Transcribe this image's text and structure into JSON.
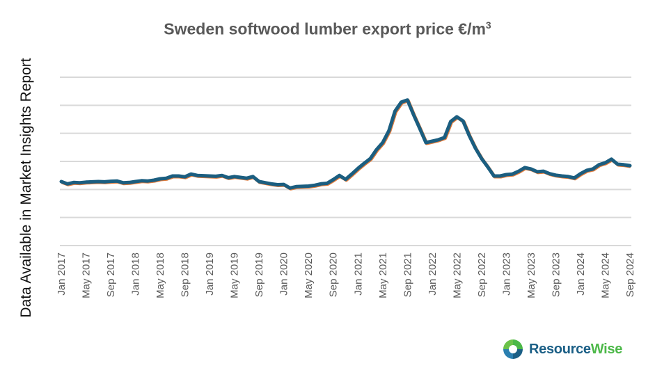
{
  "chart_data": {
    "type": "line",
    "title": "Sweden softwood lumber export price €/m",
    "title_superscript": "3",
    "side_note": "Data Available in Market Insights Report",
    "xlabel": "",
    "ylabel": "",
    "y_units": "relative (y-axis values not shown; 6 gridline intervals)",
    "ylim": [
      0,
      6
    ],
    "grid": true,
    "tick_labels": [
      "Jan 2017",
      "May 2017",
      "Sep 2017",
      "Jan 2018",
      "May 2018",
      "Sep 2018",
      "Jan 2019",
      "May 2019",
      "Sep 2019",
      "Jan 2020",
      "May 2020",
      "Sep 2020",
      "Jan 2021",
      "May 2021",
      "Sep 2021",
      "Jan 2022",
      "May 2022",
      "Sep 2022",
      "Jan 2023",
      "May 2023",
      "Sep 2023",
      "Jan 2024",
      "May 2024",
      "Sep 2024"
    ],
    "x_start": "Jan 2017",
    "x_frequency": "monthly",
    "series": [
      {
        "name": "Export price",
        "color": "#1b5e80",
        "shadow_color": "#e07a3a",
        "values": [
          2.28,
          2.2,
          2.25,
          2.24,
          2.26,
          2.27,
          2.28,
          2.27,
          2.29,
          2.3,
          2.24,
          2.25,
          2.28,
          2.31,
          2.3,
          2.33,
          2.38,
          2.4,
          2.48,
          2.48,
          2.45,
          2.55,
          2.5,
          2.49,
          2.48,
          2.47,
          2.5,
          2.42,
          2.46,
          2.43,
          2.4,
          2.46,
          2.28,
          2.24,
          2.2,
          2.17,
          2.18,
          2.05,
          2.1,
          2.11,
          2.12,
          2.15,
          2.2,
          2.22,
          2.35,
          2.5,
          2.36,
          2.55,
          2.75,
          2.93,
          3.1,
          3.42,
          3.67,
          4.09,
          4.79,
          5.11,
          5.19,
          4.66,
          4.17,
          3.67,
          3.72,
          3.77,
          3.85,
          4.42,
          4.59,
          4.44,
          3.92,
          3.47,
          3.1,
          2.8,
          2.48,
          2.48,
          2.53,
          2.55,
          2.65,
          2.78,
          2.73,
          2.63,
          2.65,
          2.56,
          2.51,
          2.48,
          2.46,
          2.41,
          2.56,
          2.68,
          2.73,
          2.88,
          2.95,
          3.08,
          2.9,
          2.88,
          2.85
        ]
      }
    ]
  },
  "logo": {
    "part1": "Resource",
    "part2": "Wise",
    "colors": [
      "#1b5f86",
      "#4cb848"
    ]
  }
}
